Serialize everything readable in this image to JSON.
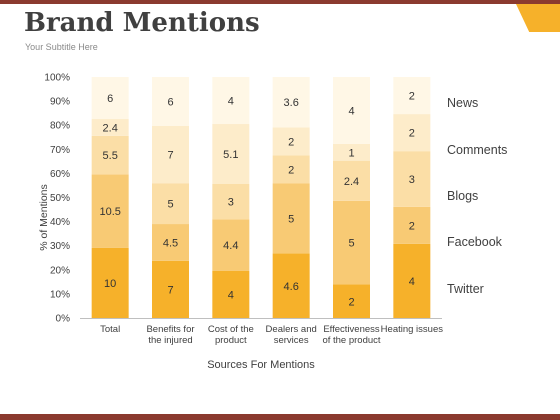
{
  "title": "Brand Mentions",
  "subtitle": "Your Subtitle Here",
  "theme": {
    "accent": "#f6b12a",
    "top_bar": "#8b3a2f",
    "bottom_bar": "#8b3a2f",
    "corner_tab": "#f6b12a",
    "text": "#404040"
  },
  "chart_data": {
    "type": "bar",
    "stacked": true,
    "percent_stacked": true,
    "categories": [
      "Total",
      "Benefits for the injured",
      "Cost of the product",
      "Dealers and services",
      "Effectiveness of the product",
      "Heating issues"
    ],
    "category_lines": [
      [
        "Total"
      ],
      [
        "Benefits for",
        "the injured"
      ],
      [
        "Cost of the",
        "product"
      ],
      [
        "Dealers and",
        "services"
      ],
      [
        "Effectiveness",
        "of the product"
      ],
      [
        "Heating issues"
      ]
    ],
    "series": [
      {
        "name": "Twitter",
        "color": "#f6b12a",
        "values": [
          10,
          7,
          4,
          4.6,
          2,
          4
        ]
      },
      {
        "name": "Facebook",
        "color": "#f8ca74",
        "values": [
          10.5,
          4.5,
          4.4,
          5,
          5,
          2
        ]
      },
      {
        "name": "Blogs",
        "color": "#fbdea6",
        "values": [
          5.5,
          5,
          3,
          2,
          2.4,
          3
        ]
      },
      {
        "name": "Comments",
        "color": "#fdecca",
        "values": [
          2.4,
          7,
          5.1,
          2,
          1,
          2
        ]
      },
      {
        "name": "News",
        "color": "#fff7e6",
        "values": [
          6,
          6,
          4,
          3.6,
          4,
          2
        ]
      }
    ],
    "xlabel": "Sources For Mentions",
    "ylabel": "% of Mentions",
    "ylim": [
      0,
      100
    ],
    "yticks": [
      "0%",
      "10%",
      "20%",
      "30%",
      "40%",
      "50%",
      "60%",
      "70%",
      "80%",
      "90%",
      "100%"
    ],
    "legend": "right",
    "grid": false
  }
}
